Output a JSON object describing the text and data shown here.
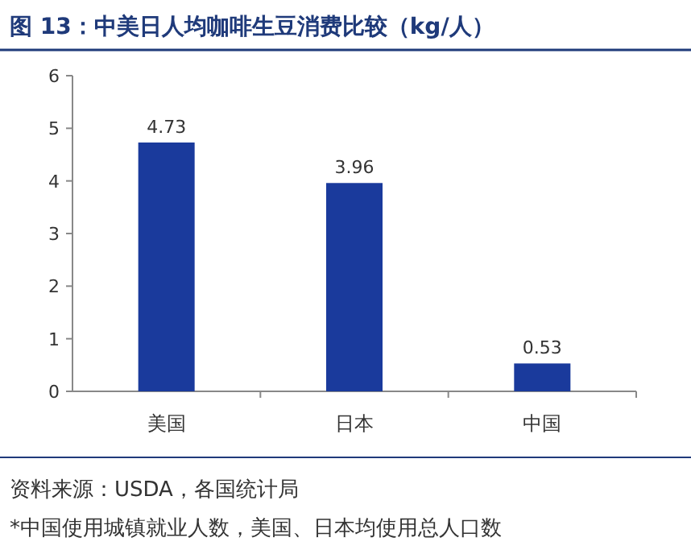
{
  "chart_data": {
    "type": "bar",
    "title": "图 13：中美日人均咖啡生豆消费比较（kg/人）",
    "categories": [
      "美国",
      "日本",
      "中国"
    ],
    "values": [
      4.73,
      3.96,
      0.53
    ],
    "color": "#1a3a9c",
    "ylim": [
      0,
      6
    ],
    "yticks": [
      0,
      1,
      2,
      3,
      4,
      5,
      6
    ],
    "data_labels": true,
    "annotations": [
      "资料来源：USDA，各国统计局",
      "*中国使用城镇就业人数，美国、日本均使用总人口数"
    ]
  }
}
